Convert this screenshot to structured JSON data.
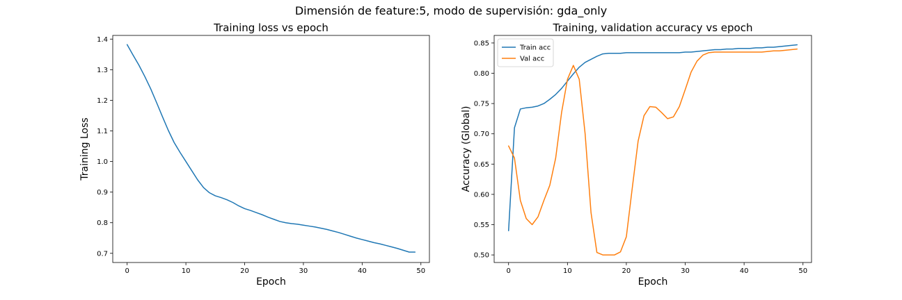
{
  "suptitle": "Dimensión de feature:5, modo de supervisión: gda_only",
  "colors": {
    "train": "#1f77b4",
    "val": "#ff7f0e",
    "axis": "#000000"
  },
  "chart_data": [
    {
      "type": "line",
      "title": "Training loss vs epoch",
      "xlabel": "Epoch",
      "ylabel": "Training Loss",
      "xlim": [
        -2.45,
        51.45
      ],
      "ylim": [
        0.67,
        1.412
      ],
      "xticks": [
        0,
        10,
        20,
        30,
        40,
        50
      ],
      "yticks": [
        0.7,
        0.8,
        0.9,
        1.0,
        1.1,
        1.2,
        1.3,
        1.4
      ],
      "ytick_labels": [
        "0.7",
        "0.8",
        "0.9",
        "1.0",
        "1.1",
        "1.2",
        "1.3",
        "1.4"
      ],
      "grid": false,
      "series": [
        {
          "color": "#1f77b4",
          "x": [
            0,
            1,
            2,
            3,
            4,
            5,
            6,
            7,
            8,
            9,
            10,
            11,
            12,
            13,
            14,
            15,
            16,
            17,
            18,
            19,
            20,
            21,
            22,
            23,
            24,
            25,
            26,
            27,
            28,
            29,
            30,
            31,
            32,
            33,
            34,
            35,
            36,
            37,
            38,
            39,
            40,
            41,
            42,
            43,
            44,
            45,
            46,
            47,
            48,
            49
          ],
          "y": [
            1.382,
            1.348,
            1.315,
            1.278,
            1.238,
            1.193,
            1.147,
            1.102,
            1.062,
            1.03,
            1.0,
            0.97,
            0.94,
            0.915,
            0.898,
            0.888,
            0.882,
            0.875,
            0.866,
            0.855,
            0.846,
            0.84,
            0.833,
            0.826,
            0.818,
            0.811,
            0.804,
            0.8,
            0.797,
            0.795,
            0.792,
            0.789,
            0.786,
            0.782,
            0.778,
            0.773,
            0.768,
            0.762,
            0.756,
            0.75,
            0.745,
            0.74,
            0.735,
            0.731,
            0.726,
            0.721,
            0.716,
            0.71,
            0.704,
            0.704
          ]
        }
      ]
    },
    {
      "type": "line",
      "title": "Training, validation accuracy vs epoch",
      "xlabel": "Epoch",
      "ylabel": "Accuracy (Global)",
      "xlim": [
        -2.45,
        51.45
      ],
      "ylim": [
        0.4875,
        0.8625
      ],
      "xticks": [
        0,
        10,
        20,
        30,
        40,
        50
      ],
      "yticks": [
        0.5,
        0.55,
        0.6,
        0.65,
        0.7,
        0.75,
        0.8,
        0.85
      ],
      "ytick_labels": [
        "0.50",
        "0.55",
        "0.60",
        "0.65",
        "0.70",
        "0.75",
        "0.80",
        "0.85"
      ],
      "grid": false,
      "legend": "upper-left",
      "series": [
        {
          "name": "Train acc",
          "color": "#1f77b4",
          "x": [
            0,
            1,
            2,
            3,
            4,
            5,
            6,
            7,
            8,
            9,
            10,
            11,
            12,
            13,
            14,
            15,
            16,
            17,
            18,
            19,
            20,
            21,
            22,
            23,
            24,
            25,
            26,
            27,
            28,
            29,
            30,
            31,
            32,
            33,
            34,
            35,
            36,
            37,
            38,
            39,
            40,
            41,
            42,
            43,
            44,
            45,
            46,
            47,
            48,
            49
          ],
          "y": [
            0.54,
            0.71,
            0.741,
            0.743,
            0.744,
            0.746,
            0.75,
            0.757,
            0.765,
            0.775,
            0.787,
            0.799,
            0.81,
            0.818,
            0.823,
            0.828,
            0.832,
            0.833,
            0.833,
            0.833,
            0.834,
            0.834,
            0.834,
            0.834,
            0.834,
            0.834,
            0.834,
            0.834,
            0.834,
            0.834,
            0.835,
            0.835,
            0.836,
            0.837,
            0.838,
            0.839,
            0.839,
            0.84,
            0.84,
            0.841,
            0.841,
            0.841,
            0.842,
            0.842,
            0.843,
            0.843,
            0.844,
            0.845,
            0.846,
            0.847
          ]
        },
        {
          "name": "Val acc",
          "color": "#ff7f0e",
          "x": [
            0,
            1,
            2,
            3,
            4,
            5,
            6,
            7,
            8,
            9,
            10,
            11,
            12,
            13,
            14,
            15,
            16,
            17,
            18,
            19,
            20,
            21,
            22,
            23,
            24,
            25,
            26,
            27,
            28,
            29,
            30,
            31,
            32,
            33,
            34,
            35,
            36,
            37,
            38,
            39,
            40,
            41,
            42,
            43,
            44,
            45,
            46,
            47,
            48,
            49
          ],
          "y": [
            0.68,
            0.66,
            0.59,
            0.56,
            0.55,
            0.563,
            0.59,
            0.615,
            0.66,
            0.735,
            0.79,
            0.813,
            0.79,
            0.7,
            0.57,
            0.504,
            0.5,
            0.5,
            0.5,
            0.505,
            0.53,
            0.61,
            0.688,
            0.73,
            0.745,
            0.744,
            0.735,
            0.725,
            0.728,
            0.745,
            0.773,
            0.802,
            0.82,
            0.83,
            0.834,
            0.835,
            0.835,
            0.835,
            0.835,
            0.835,
            0.835,
            0.835,
            0.835,
            0.835,
            0.836,
            0.837,
            0.837,
            0.838,
            0.839,
            0.84
          ]
        }
      ]
    }
  ]
}
